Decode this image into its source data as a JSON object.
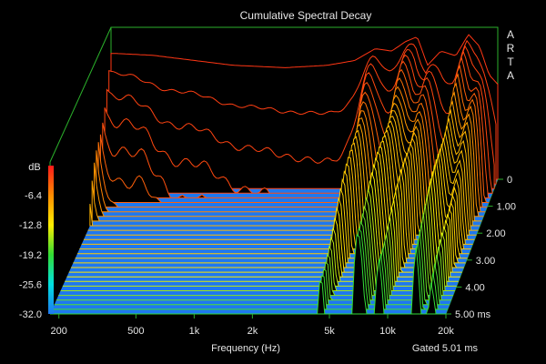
{
  "chart_data": {
    "type": "waterfall-3d",
    "title": "Cumulative Spectral Decay",
    "brand": [
      "A",
      "R",
      "T",
      "A"
    ],
    "xlabel": "Frequency (Hz)",
    "x_scale": "log",
    "x_range": [
      180,
      20000
    ],
    "x_ticks": [
      {
        "value": 200,
        "label": "200"
      },
      {
        "value": 500,
        "label": "500"
      },
      {
        "value": 1000,
        "label": "1k"
      },
      {
        "value": 2000,
        "label": "2k"
      },
      {
        "value": 5000,
        "label": "5k"
      },
      {
        "value": 10000,
        "label": "10k"
      },
      {
        "value": 20000,
        "label": "20k"
      }
    ],
    "y_label": "dB",
    "y_range": [
      -32,
      0
    ],
    "y_ticks": [
      "-6.4",
      "-12.8",
      "-19.2",
      "-25.6",
      "-32.0"
    ],
    "y_values": [
      -6.4,
      -12.8,
      -19.2,
      -25.6,
      -32.0
    ],
    "z_ticks": [
      "0",
      "1.00",
      "2.00",
      "3.00",
      "4.00",
      "5.00 ms"
    ],
    "z_values": [
      0,
      1,
      2,
      3,
      4,
      5
    ],
    "z_unit": "ms",
    "gate_text": "Gated 5.01 ms",
    "slices_drawn": 30,
    "colors": {
      "floor": "#1e78f0",
      "frame": "#2bb12b",
      "background": "#000000",
      "colorbar": [
        "#ff1a1a",
        "#ff8c00",
        "#ffee00",
        "#33dd33",
        "#00e0e0",
        "#1e78f0"
      ]
    },
    "response_0ms": [
      {
        "f": 190,
        "db": -5.5
      },
      {
        "f": 300,
        "db": -5.9
      },
      {
        "f": 500,
        "db": -7.0
      },
      {
        "f": 800,
        "db": -8.0
      },
      {
        "f": 1500,
        "db": -8.5
      },
      {
        "f": 2500,
        "db": -8.0
      },
      {
        "f": 3500,
        "db": -7.0
      },
      {
        "f": 4500,
        "db": -4.5
      },
      {
        "f": 5500,
        "db": -5.0
      },
      {
        "f": 6500,
        "db": -3.0
      },
      {
        "f": 7500,
        "db": -2.0
      },
      {
        "f": 8500,
        "db": -8.0
      },
      {
        "f": 10000,
        "db": -5.0
      },
      {
        "f": 12000,
        "db": -6.0
      },
      {
        "f": 14000,
        "db": -1.5
      },
      {
        "f": 16000,
        "db": -4.0
      },
      {
        "f": 18000,
        "db": -10.0
      },
      {
        "f": 20000,
        "db": -12.0
      }
    ],
    "resonances": [
      {
        "f": 4500,
        "q": 10,
        "decay_ms": 2.2
      },
      {
        "f": 7000,
        "q": 9,
        "decay_ms": 4.0
      },
      {
        "f": 9000,
        "q": 12,
        "decay_ms": 3.5
      },
      {
        "f": 14000,
        "q": 11,
        "decay_ms": 3.0
      },
      {
        "f": 17000,
        "q": 14,
        "decay_ms": 2.5
      }
    ]
  }
}
